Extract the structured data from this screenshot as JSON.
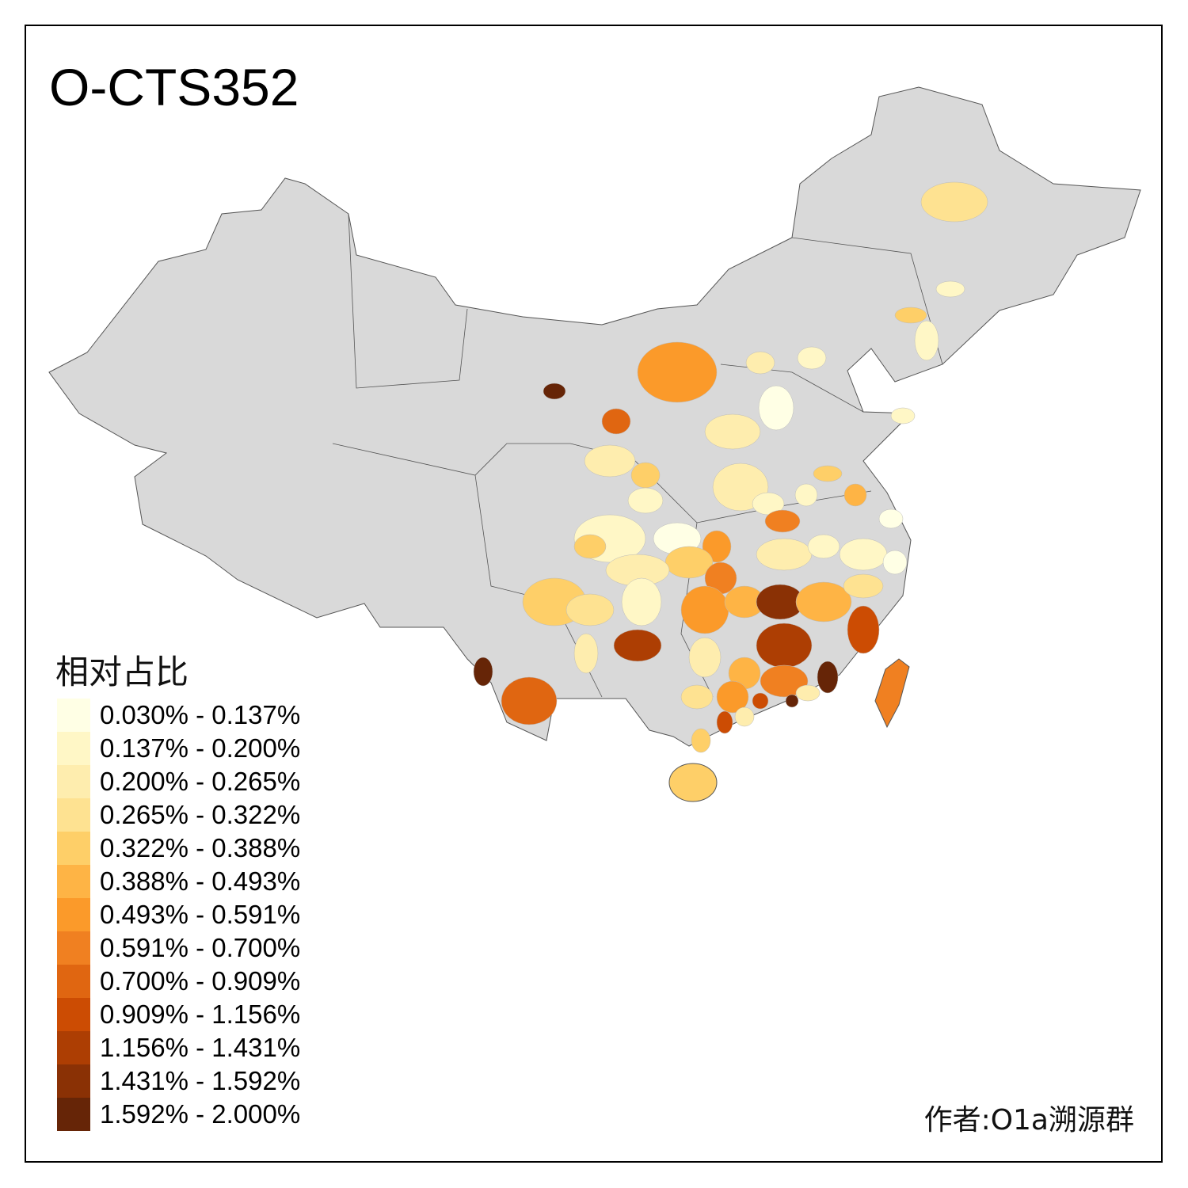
{
  "title": "O-CTS352",
  "legend": {
    "title": "相对占比",
    "items": [
      {
        "label": "0.030% - 0.137%",
        "color": "#FFFFE5"
      },
      {
        "label": "0.137% - 0.200%",
        "color": "#FFF7C6"
      },
      {
        "label": "0.200% - 0.265%",
        "color": "#FEEDAE"
      },
      {
        "label": "0.265% - 0.322%",
        "color": "#FEE291"
      },
      {
        "label": "0.322% - 0.388%",
        "color": "#FECF68"
      },
      {
        "label": "0.388% - 0.493%",
        "color": "#FEB445"
      },
      {
        "label": "0.493% - 0.591%",
        "color": "#FB9A2A"
      },
      {
        "label": "0.591% - 0.700%",
        "color": "#F08021"
      },
      {
        "label": "0.700% - 0.909%",
        "color": "#E06611"
      },
      {
        "label": "0.909% - 1.156%",
        "color": "#CC4C03"
      },
      {
        "label": "1.156% - 1.431%",
        "color": "#AD3E03"
      },
      {
        "label": "1.431% - 1.592%",
        "color": "#8A3105"
      },
      {
        "label": "1.592% - 2.000%",
        "color": "#662507"
      }
    ]
  },
  "map": {
    "base_color": "#D9D9D9",
    "border_color": "#555555"
  },
  "author": "作者:O1a溯源群"
}
